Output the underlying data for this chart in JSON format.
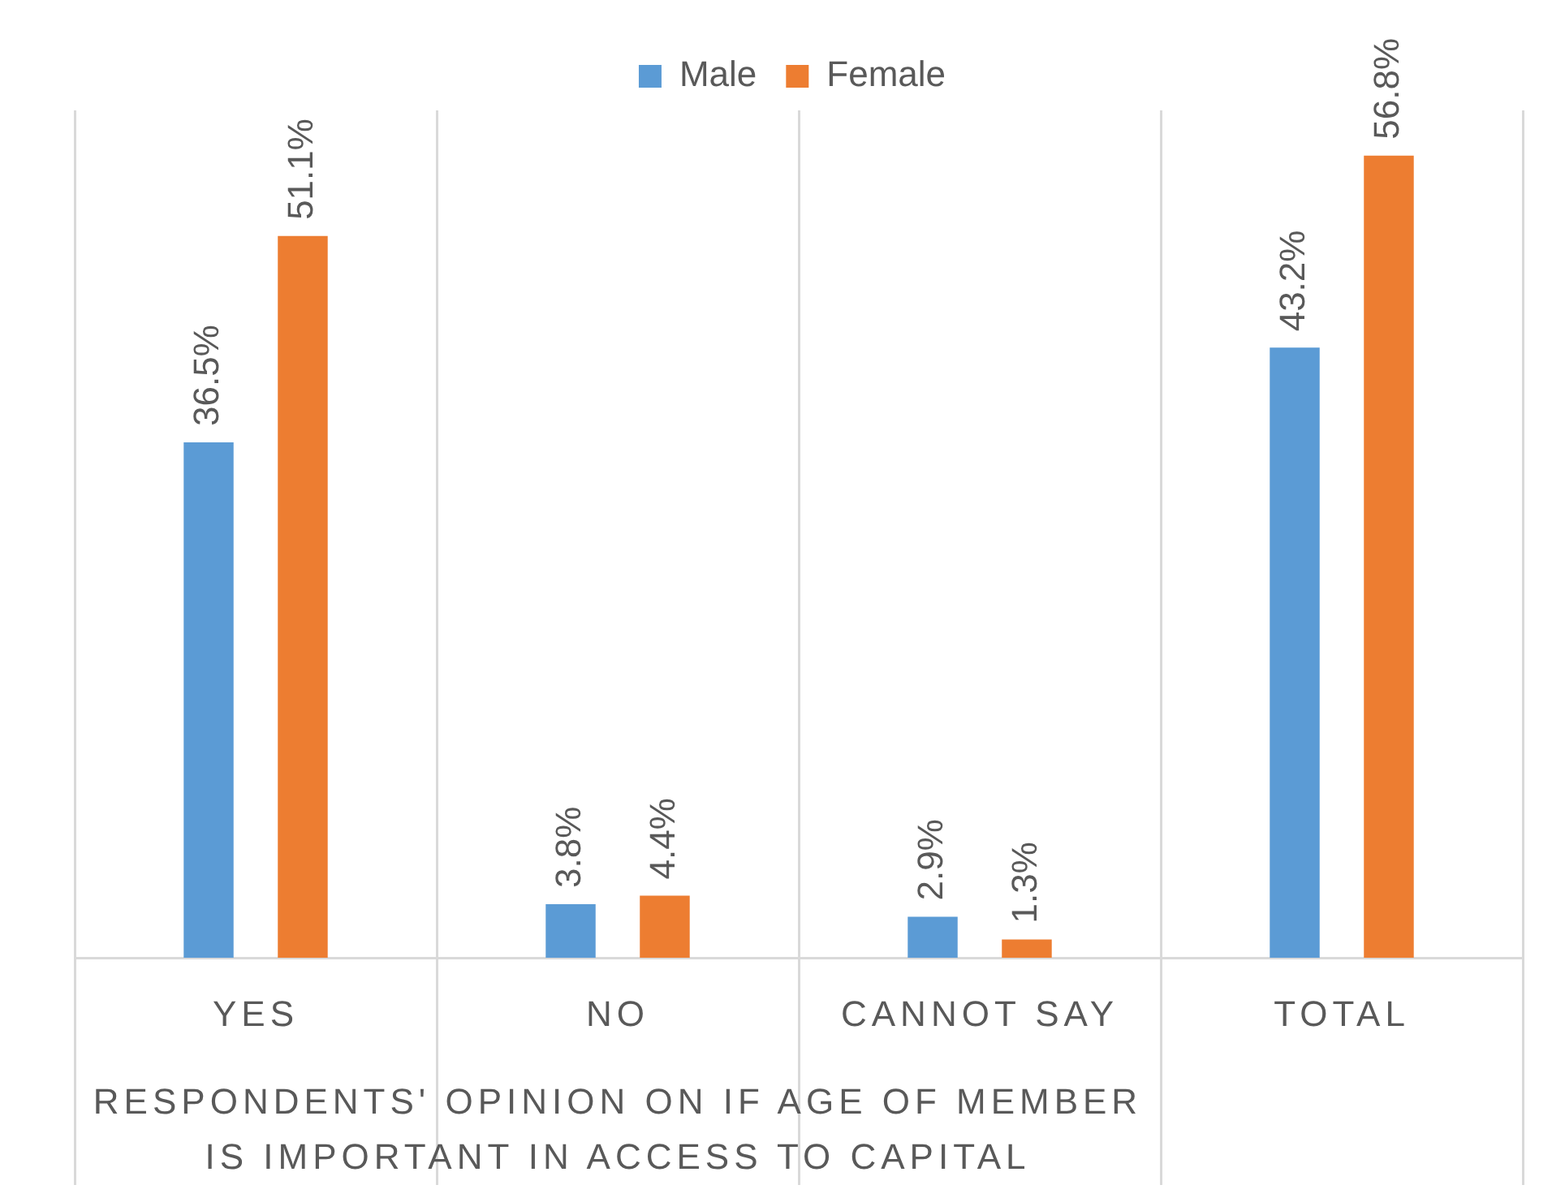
{
  "chart_data": {
    "type": "bar",
    "categories": [
      "YES",
      "NO",
      "CANNOT SAY",
      "TOTAL"
    ],
    "xlabel": "RESPONDENTS' OPINION ON IF AGE OF MEMBER IS IMPORTANT IN ACCESS TO CAPITAL",
    "series": [
      {
        "name": "Male",
        "color": "#5b9bd5",
        "values": [
          36.5,
          3.8,
          2.9,
          43.2
        ],
        "value_labels": [
          "36.5%",
          "3.8%",
          "2.9%",
          "43.2%"
        ]
      },
      {
        "name": "Female",
        "color": "#ed7d31",
        "values": [
          51.1,
          4.4,
          1.3,
          56.8
        ],
        "value_labels": [
          "51.1%",
          "4.4%",
          "1.3%",
          "56.8%"
        ]
      }
    ],
    "grid": "x",
    "legend": "top",
    "tick_labels": "x"
  }
}
